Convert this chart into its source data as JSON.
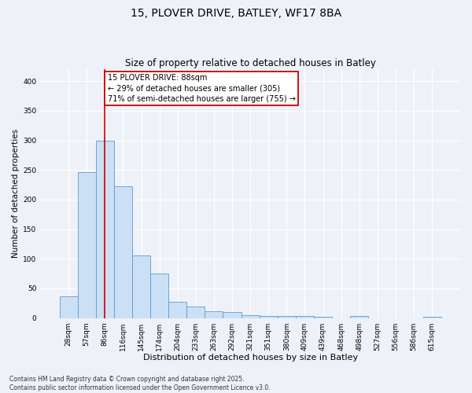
{
  "title_line1": "15, PLOVER DRIVE, BATLEY, WF17 8BA",
  "title_line2": "Size of property relative to detached houses in Batley",
  "xlabel": "Distribution of detached houses by size in Batley",
  "ylabel": "Number of detached properties",
  "categories": [
    "28sqm",
    "57sqm",
    "86sqm",
    "116sqm",
    "145sqm",
    "174sqm",
    "204sqm",
    "233sqm",
    "263sqm",
    "292sqm",
    "321sqm",
    "351sqm",
    "380sqm",
    "409sqm",
    "439sqm",
    "468sqm",
    "498sqm",
    "527sqm",
    "556sqm",
    "586sqm",
    "615sqm"
  ],
  "values": [
    37,
    247,
    300,
    222,
    106,
    75,
    28,
    19,
    12,
    10,
    5,
    4,
    3,
    3,
    2,
    0,
    3,
    0,
    0,
    0,
    2
  ],
  "bar_color": "#cce0f5",
  "bar_edge_color": "#5b9bd5",
  "vline_x_index": 2,
  "vline_color": "#cc0000",
  "annotation_text": "15 PLOVER DRIVE: 88sqm\n← 29% of detached houses are smaller (305)\n71% of semi-detached houses are larger (755) →",
  "annotation_box_facecolor": "#ffffff",
  "annotation_box_edgecolor": "#cc0000",
  "footer_text": "Contains HM Land Registry data © Crown copyright and database right 2025.\nContains public sector information licensed under the Open Government Licence v3.0.",
  "ylim": [
    0,
    420
  ],
  "yticks": [
    0,
    50,
    100,
    150,
    200,
    250,
    300,
    350,
    400
  ],
  "background_color": "#eef2f8",
  "plot_bg_color": "#eef2f8",
  "grid_color": "#ffffff",
  "title1_fontsize": 10,
  "title2_fontsize": 8.5,
  "xlabel_fontsize": 8,
  "ylabel_fontsize": 7.5,
  "tick_fontsize": 6.5,
  "annot_fontsize": 7,
  "footer_fontsize": 5.5
}
